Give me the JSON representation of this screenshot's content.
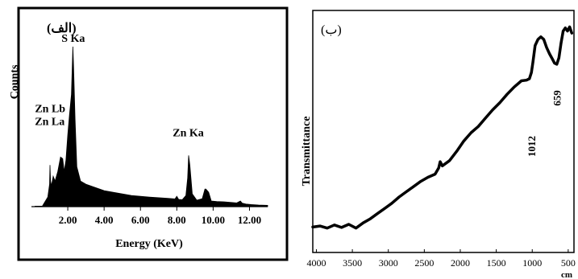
{
  "chart_data": [
    {
      "type": "area",
      "panel_label": "(الف)",
      "xlabel": "Energy (KeV)",
      "ylabel": "Counts",
      "xlim": [
        0,
        13
      ],
      "ylim": [
        0,
        100
      ],
      "xticks": [
        {
          "value": 2,
          "label": "2.00"
        },
        {
          "value": 4,
          "label": "4.00"
        },
        {
          "value": 6,
          "label": "6.00"
        },
        {
          "value": 8,
          "label": "8.00"
        },
        {
          "value": 10,
          "label": "10.00"
        },
        {
          "value": 12,
          "label": "12.00"
        }
      ],
      "annotations": [
        {
          "text": "S Ka",
          "x": 2.3,
          "y": 100
        },
        {
          "text": "Zn Lb",
          "x": 1.03,
          "y": 56
        },
        {
          "text": "Zn La",
          "x": 1.01,
          "y": 48
        },
        {
          "text": "Zn Ka",
          "x": 8.63,
          "y": 41
        }
      ],
      "x": [
        0.2,
        0.6,
        0.9,
        1.0,
        1.02,
        1.05,
        1.1,
        1.2,
        1.3,
        1.45,
        1.6,
        1.72,
        1.8,
        1.9,
        2.0,
        2.1,
        2.2,
        2.28,
        2.32,
        2.4,
        2.5,
        2.7,
        3.0,
        3.5,
        4.0,
        4.5,
        5.0,
        5.5,
        6.0,
        6.5,
        7.0,
        7.5,
        7.9,
        8.0,
        8.1,
        8.3,
        8.5,
        8.6,
        8.65,
        8.72,
        8.85,
        9.1,
        9.4,
        9.55,
        9.6,
        9.75,
        9.9,
        10.2,
        10.6,
        11.0,
        11.3,
        11.5,
        11.6,
        11.8,
        12.1,
        12.5,
        13.0
      ],
      "y": [
        0.3,
        0.3,
        6,
        14,
        26,
        16,
        13,
        19,
        16,
        22,
        31,
        30,
        22,
        29,
        45,
        58,
        70,
        100,
        87,
        55,
        25,
        16,
        14,
        12,
        10,
        9,
        8,
        7,
        6.5,
        6,
        5.6,
        5.2,
        4.8,
        6.5,
        4.5,
        4.3,
        7,
        18,
        32,
        26,
        8,
        4,
        5,
        11,
        11,
        9,
        3.5,
        3.2,
        3,
        2.6,
        2.3,
        3.5,
        2.2,
        1.6,
        1.3,
        1,
        0.8
      ]
    },
    {
      "type": "line",
      "panel_label": "(ب)",
      "ylabel": "Transmittance",
      "xlabel": "cm",
      "xlim": [
        4050,
        420
      ],
      "ylim": [
        0,
        100
      ],
      "xticks": [
        {
          "value": 4000,
          "label": "4000"
        },
        {
          "value": 3500,
          "label": "3500"
        },
        {
          "value": 3000,
          "label": "3000"
        },
        {
          "value": 2500,
          "label": "2500"
        },
        {
          "value": 2000,
          "label": "2000"
        },
        {
          "value": 1500,
          "label": "1500"
        },
        {
          "value": 1000,
          "label": "1000"
        },
        {
          "value": 500,
          "label": "500"
        }
      ],
      "annotations": [
        {
          "text": "1012",
          "x": 1012
        },
        {
          "text": "659",
          "x": 659
        }
      ],
      "x": [
        4050,
        3950,
        3850,
        3750,
        3650,
        3550,
        3450,
        3350,
        3250,
        3150,
        3050,
        2950,
        2850,
        2750,
        2650,
        2550,
        2450,
        2350,
        2300,
        2280,
        2250,
        2150,
        2050,
        1950,
        1850,
        1750,
        1650,
        1550,
        1450,
        1350,
        1250,
        1150,
        1080,
        1040,
        1012,
        990,
        960,
        920,
        880,
        840,
        800,
        760,
        720,
        690,
        659,
        630,
        600,
        570,
        540,
        510,
        480,
        450
      ],
      "y": [
        4.5,
        5,
        4,
        5.5,
        4.3,
        5.8,
        4,
        6.5,
        8.5,
        11,
        13.5,
        16,
        19,
        21.5,
        24,
        26.5,
        28.5,
        30,
        33,
        36,
        34,
        36.5,
        41,
        46,
        50,
        53,
        57,
        61,
        64.5,
        68.5,
        72,
        75,
        75.3,
        76,
        79,
        84,
        92,
        95,
        96.2,
        95,
        91,
        88,
        85.5,
        83.5,
        83,
        86,
        93,
        99,
        100.5,
        99,
        101,
        98
      ]
    }
  ]
}
